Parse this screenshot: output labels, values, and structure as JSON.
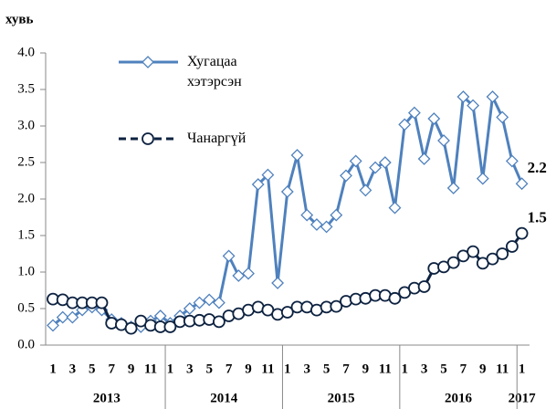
{
  "chart_data": {
    "type": "line",
    "y_axis_label": "хувь",
    "categories": [
      "1",
      null,
      "3",
      null,
      "5",
      null,
      "7",
      null,
      "9",
      null,
      "11",
      null,
      "1",
      null,
      "3",
      null,
      "5",
      null,
      "7",
      null,
      "9",
      null,
      "11",
      null,
      "1",
      null,
      "3",
      null,
      "5",
      null,
      "7",
      null,
      "9",
      null,
      "11",
      null,
      "1",
      null,
      "3",
      null,
      "5",
      null,
      "7",
      null,
      "9",
      null,
      "11",
      null,
      "1"
    ],
    "x_groups": [
      "2013",
      "2014",
      "2015",
      "2016",
      "2017"
    ],
    "ylim": [
      0,
      4
    ],
    "yticks": [
      {
        "value": 0,
        "label": "0.0"
      },
      0.5,
      {
        "value": 1,
        "label": "1.0"
      },
      1.5,
      {
        "value": 2,
        "label": "2.0"
      },
      2.5,
      {
        "value": 3,
        "label": "3.0"
      },
      3.5,
      {
        "value": 4,
        "label": "4.0"
      }
    ],
    "series": [
      {
        "name": "Хугацаа хэтэрсэн",
        "color": "#4f81bd",
        "marker": "diamond",
        "values": [
          0.27,
          0.38,
          0.38,
          0.48,
          0.52,
          0.48,
          0.35,
          0.3,
          0.25,
          0.25,
          0.33,
          0.4,
          0.3,
          0.4,
          0.5,
          0.58,
          0.62,
          0.58,
          1.22,
          0.95,
          0.98,
          2.2,
          2.33,
          0.85,
          2.1,
          2.6,
          1.78,
          1.65,
          1.62,
          1.78,
          2.32,
          2.52,
          2.12,
          2.43,
          2.5,
          1.88,
          3.02,
          3.18,
          2.55,
          3.1,
          2.8,
          2.15,
          3.4,
          3.28,
          2.28,
          3.4,
          3.12,
          2.52,
          2.21
        ],
        "value_labels": [
          null,
          null,
          null,
          null,
          null,
          null,
          null,
          null,
          null,
          null,
          null,
          null,
          null,
          null,
          null,
          null,
          null,
          null,
          null,
          null,
          null,
          null,
          null,
          null,
          null,
          null,
          null,
          null,
          null,
          null,
          null,
          null,
          null,
          null,
          null,
          null,
          null,
          null,
          null,
          null,
          null,
          null,
          null,
          null,
          null,
          null,
          null,
          null,
          "2.2"
        ]
      },
      {
        "name": "Чанаргүй",
        "color": "#0d2240",
        "marker": "circle",
        "values": [
          0.63,
          0.62,
          0.58,
          0.58,
          0.58,
          0.58,
          0.3,
          0.28,
          0.23,
          0.33,
          0.27,
          0.25,
          0.25,
          0.32,
          0.33,
          0.34,
          0.35,
          0.32,
          0.4,
          0.43,
          0.48,
          0.52,
          0.48,
          0.42,
          0.45,
          0.52,
          0.52,
          0.48,
          0.52,
          0.53,
          0.6,
          0.63,
          0.64,
          0.68,
          0.68,
          0.64,
          0.72,
          0.78,
          0.8,
          1.05,
          1.07,
          1.13,
          1.22,
          1.28,
          1.12,
          1.18,
          1.25,
          1.35,
          1.53
        ],
        "value_labels": [
          null,
          null,
          null,
          null,
          null,
          null,
          null,
          null,
          null,
          null,
          null,
          null,
          null,
          null,
          null,
          null,
          null,
          null,
          null,
          null,
          null,
          null,
          null,
          null,
          null,
          null,
          null,
          null,
          null,
          null,
          null,
          null,
          null,
          null,
          null,
          null,
          null,
          null,
          null,
          null,
          null,
          null,
          null,
          null,
          null,
          null,
          null,
          null,
          "1.5"
        ]
      }
    ]
  }
}
